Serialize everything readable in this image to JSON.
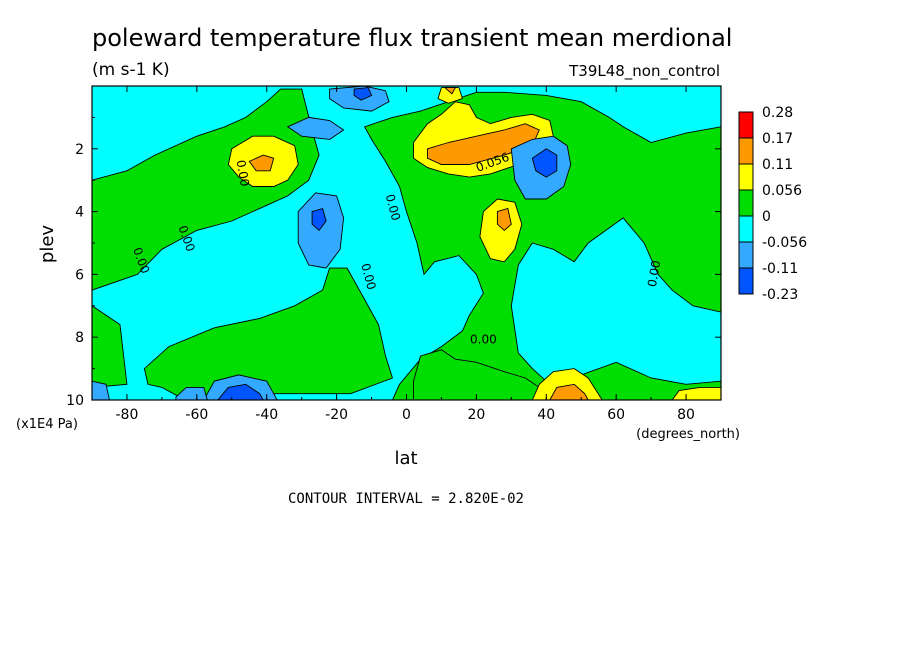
{
  "chart_data": {
    "type": "heatmap",
    "title": "poleward temperature flux transient mean merdional",
    "units": "(m s-1 K)",
    "dataset": "T39L48_non_control",
    "xlabel": "lat",
    "xunits": "(degrees_north)",
    "ylabel": "plev",
    "yunits": "(x1E4 Pa)",
    "xlim": [
      -90,
      90
    ],
    "ylim": [
      10,
      0
    ],
    "x_ticks": [
      "-80",
      "-60",
      "-40",
      "-20",
      "0",
      "20",
      "40",
      "60",
      "80"
    ],
    "y_ticks": [
      "2",
      "4",
      "6",
      "8",
      "10"
    ],
    "contour_interval_text": "CONTOUR INTERVAL = 2.820E-02",
    "contour_labels": [
      "0.00",
      "0.00",
      "0.00",
      "0.00",
      "0.00",
      "0.00",
      "0.056",
      "0.00"
    ],
    "legend": {
      "levels": [
        "0.28",
        "0.17",
        "0.11",
        "0.056",
        "0",
        "-0.056",
        "-0.11",
        "-0.23"
      ],
      "colors": [
        "#ff0000",
        "#ff9900",
        "#ffff00",
        "#00dd00",
        "#00ffff",
        "#33aaff",
        "#0055ff"
      ]
    },
    "fill_regions": [
      {
        "color": "#00ffff",
        "points": [
          [
            -90,
            0
          ],
          [
            90,
            0
          ],
          [
            90,
            10
          ],
          [
            -90,
            10
          ]
        ]
      },
      {
        "color": "#00dd00",
        "points": [
          [
            -90,
            3
          ],
          [
            -80,
            2.7
          ],
          [
            -72,
            2.2
          ],
          [
            -60,
            1.6
          ],
          [
            -52,
            1.3
          ],
          [
            -46,
            1.0
          ],
          [
            -40,
            0.5
          ],
          [
            -36,
            0.1
          ],
          [
            -30,
            0.1
          ],
          [
            -27,
            1.4
          ],
          [
            -25,
            2.2
          ],
          [
            -28,
            3.0
          ],
          [
            -34,
            3.5
          ],
          [
            -40,
            3.8
          ],
          [
            -50,
            4.3
          ],
          [
            -60,
            4.6
          ],
          [
            -70,
            5.2
          ],
          [
            -77,
            6.0
          ],
          [
            -90,
            6.5
          ]
        ]
      },
      {
        "color": "#00dd00",
        "points": [
          [
            -90,
            7.0
          ],
          [
            -82,
            7.6
          ],
          [
            -80,
            9.5
          ],
          [
            -90,
            9.6
          ]
        ]
      },
      {
        "color": "#00dd00",
        "points": [
          [
            -22,
            5.8
          ],
          [
            -17,
            5.8
          ],
          [
            -12,
            6.8
          ],
          [
            -8,
            7.6
          ],
          [
            -6,
            8.6
          ],
          [
            -4,
            9.3
          ],
          [
            -16,
            9.8
          ],
          [
            -40,
            9.8
          ],
          [
            -56,
            9.9
          ],
          [
            -65,
            9.9
          ],
          [
            -70,
            9.6
          ],
          [
            -74,
            9.5
          ],
          [
            -75,
            9.0
          ],
          [
            -68,
            8.3
          ],
          [
            -55,
            7.7
          ],
          [
            -42,
            7.4
          ],
          [
            -32,
            7.0
          ],
          [
            -24,
            6.5
          ]
        ]
      },
      {
        "color": "#00dd00",
        "points": [
          [
            -12,
            1.3
          ],
          [
            -4,
            1.0
          ],
          [
            4,
            0.8
          ],
          [
            12,
            0.5
          ],
          [
            20,
            0.2
          ],
          [
            28,
            0.2
          ],
          [
            40,
            0.3
          ],
          [
            50,
            0.5
          ],
          [
            58,
            1.0
          ],
          [
            62,
            1.3
          ],
          [
            70,
            1.8
          ],
          [
            80,
            1.5
          ],
          [
            90,
            1.3
          ],
          [
            90,
            7.2
          ],
          [
            82,
            7.0
          ],
          [
            76,
            6.5
          ],
          [
            72,
            6.0
          ],
          [
            68,
            5.0
          ],
          [
            62,
            4.2
          ],
          [
            52,
            5.0
          ],
          [
            48,
            5.6
          ],
          [
            42,
            5.2
          ],
          [
            36,
            5.0
          ],
          [
            32,
            5.7
          ],
          [
            30,
            7.0
          ],
          [
            32,
            8.5
          ],
          [
            36,
            9.0
          ],
          [
            40,
            9.4
          ],
          [
            50,
            9.2
          ],
          [
            60,
            8.8
          ],
          [
            70,
            9.3
          ],
          [
            80,
            9.5
          ],
          [
            90,
            9.4
          ],
          [
            90,
            10
          ],
          [
            -4,
            10
          ],
          [
            -2,
            9.5
          ],
          [
            4,
            8.7
          ],
          [
            10,
            8.3
          ],
          [
            16,
            7.8
          ],
          [
            18,
            7.3
          ],
          [
            22,
            6.6
          ],
          [
            20,
            6.0
          ],
          [
            15,
            5.4
          ],
          [
            8,
            5.6
          ],
          [
            5,
            6.0
          ],
          [
            3,
            5.0
          ],
          [
            0,
            4.0
          ],
          [
            -2,
            3.2
          ],
          [
            -6,
            2.4
          ],
          [
            -10,
            1.7
          ]
        ]
      },
      {
        "color": "#00dd00",
        "points": [
          [
            2,
            9.4
          ],
          [
            4,
            8.6
          ],
          [
            10,
            8.4
          ],
          [
            14,
            8.7
          ],
          [
            20,
            8.8
          ],
          [
            28,
            9.1
          ],
          [
            34,
            9.3
          ],
          [
            38,
            9.6
          ],
          [
            40,
            10
          ],
          [
            2,
            10
          ]
        ]
      },
      {
        "color": "#ffff00",
        "points": [
          [
            -50,
            2.0
          ],
          [
            -44,
            1.6
          ],
          [
            -38,
            1.6
          ],
          [
            -32,
            1.9
          ],
          [
            -31,
            2.5
          ],
          [
            -34,
            3.0
          ],
          [
            -38,
            3.2
          ],
          [
            -44,
            3.2
          ],
          [
            -48,
            2.9
          ],
          [
            -51,
            2.5
          ]
        ]
      },
      {
        "color": "#ff9900",
        "points": [
          [
            -45,
            2.4
          ],
          [
            -41,
            2.2
          ],
          [
            -38,
            2.3
          ],
          [
            -39,
            2.7
          ],
          [
            -43,
            2.7
          ]
        ]
      },
      {
        "color": "#ffff00",
        "points": [
          [
            2,
            1.8
          ],
          [
            6,
            1.2
          ],
          [
            10,
            0.9
          ],
          [
            14,
            0.5
          ],
          [
            18,
            0.6
          ],
          [
            20,
            1.0
          ],
          [
            24,
            1.2
          ],
          [
            30,
            1.0
          ],
          [
            36,
            0.9
          ],
          [
            41,
            1.1
          ],
          [
            42,
            1.6
          ],
          [
            38,
            2.1
          ],
          [
            32,
            2.5
          ],
          [
            24,
            2.8
          ],
          [
            18,
            2.9
          ],
          [
            12,
            2.8
          ],
          [
            6,
            2.6
          ],
          [
            2,
            2.3
          ]
        ]
      },
      {
        "color": "#ff9900",
        "points": [
          [
            6,
            2.0
          ],
          [
            12,
            1.8
          ],
          [
            20,
            1.6
          ],
          [
            28,
            1.4
          ],
          [
            34,
            1.2
          ],
          [
            38,
            1.4
          ],
          [
            36,
            1.9
          ],
          [
            28,
            2.2
          ],
          [
            18,
            2.5
          ],
          [
            10,
            2.5
          ],
          [
            6,
            2.3
          ]
        ]
      },
      {
        "color": "#ffff00",
        "points": [
          [
            10,
            0.05
          ],
          [
            15,
            0.05
          ],
          [
            16,
            0.4
          ],
          [
            12,
            0.55
          ],
          [
            9,
            0.4
          ]
        ]
      },
      {
        "color": "#ff9900",
        "points": [
          [
            11,
            0.05
          ],
          [
            14,
            0.05
          ],
          [
            13,
            0.25
          ]
        ]
      },
      {
        "color": "#ffff00",
        "points": [
          [
            22,
            4.0
          ],
          [
            26,
            3.6
          ],
          [
            31,
            3.7
          ],
          [
            33,
            4.4
          ],
          [
            31,
            5.2
          ],
          [
            28,
            5.6
          ],
          [
            24,
            5.5
          ],
          [
            21,
            4.8
          ]
        ]
      },
      {
        "color": "#ff9900",
        "points": [
          [
            26,
            4.0
          ],
          [
            29,
            3.9
          ],
          [
            30,
            4.4
          ],
          [
            28,
            4.6
          ],
          [
            26,
            4.4
          ]
        ]
      },
      {
        "color": "#ffff00",
        "points": [
          [
            36,
            10
          ],
          [
            38,
            9.5
          ],
          [
            42,
            9.1
          ],
          [
            48,
            9.0
          ],
          [
            52,
            9.3
          ],
          [
            56,
            10
          ]
        ]
      },
      {
        "color": "#ff9900",
        "points": [
          [
            41,
            10
          ],
          [
            43,
            9.6
          ],
          [
            48,
            9.5
          ],
          [
            51,
            9.8
          ],
          [
            52,
            10
          ]
        ]
      },
      {
        "color": "#ffff00",
        "points": [
          [
            76,
            10
          ],
          [
            78,
            9.7
          ],
          [
            84,
            9.6
          ],
          [
            90,
            9.6
          ],
          [
            90,
            10
          ]
        ]
      },
      {
        "color": "#33aaff",
        "points": [
          [
            -34,
            1.3
          ],
          [
            -28,
            1.0
          ],
          [
            -22,
            1.1
          ],
          [
            -18,
            1.4
          ],
          [
            -22,
            1.7
          ],
          [
            -30,
            1.6
          ]
        ]
      },
      {
        "color": "#33aaff",
        "points": [
          [
            -22,
            0.1
          ],
          [
            -12,
            0.0
          ],
          [
            -6,
            0.15
          ],
          [
            -5,
            0.5
          ],
          [
            -10,
            0.8
          ],
          [
            -18,
            0.7
          ],
          [
            -22,
            0.4
          ]
        ]
      },
      {
        "color": "#0055ff",
        "points": [
          [
            -15,
            0.1
          ],
          [
            -11,
            0.05
          ],
          [
            -10,
            0.3
          ],
          [
            -13,
            0.45
          ],
          [
            -15,
            0.3
          ]
        ]
      },
      {
        "color": "#33aaff",
        "points": [
          [
            -31,
            4.0
          ],
          [
            -26,
            3.4
          ],
          [
            -20,
            3.5
          ],
          [
            -18,
            4.2
          ],
          [
            -19,
            5.2
          ],
          [
            -23,
            5.8
          ],
          [
            -28,
            5.7
          ],
          [
            -31,
            5.0
          ]
        ]
      },
      {
        "color": "#0055ff",
        "points": [
          [
            -27,
            4.0
          ],
          [
            -24,
            3.9
          ],
          [
            -23,
            4.3
          ],
          [
            -25,
            4.6
          ],
          [
            -27,
            4.4
          ]
        ]
      },
      {
        "color": "#33aaff",
        "points": [
          [
            30,
            2.0
          ],
          [
            36,
            1.7
          ],
          [
            42,
            1.6
          ],
          [
            46,
            1.9
          ],
          [
            47,
            2.5
          ],
          [
            45,
            3.2
          ],
          [
            40,
            3.6
          ],
          [
            34,
            3.6
          ],
          [
            31,
            3.0
          ]
        ]
      },
      {
        "color": "#0055ff",
        "points": [
          [
            36,
            2.3
          ],
          [
            40,
            2.0
          ],
          [
            43,
            2.2
          ],
          [
            43,
            2.7
          ],
          [
            40,
            2.9
          ],
          [
            37,
            2.7
          ]
        ]
      },
      {
        "color": "#33aaff",
        "points": [
          [
            -58,
            10
          ],
          [
            -55,
            9.4
          ],
          [
            -48,
            9.2
          ],
          [
            -40,
            9.4
          ],
          [
            -37,
            10
          ]
        ]
      },
      {
        "color": "#0055ff",
        "points": [
          [
            -54,
            10
          ],
          [
            -51,
            9.6
          ],
          [
            -46,
            9.5
          ],
          [
            -42,
            9.8
          ],
          [
            -41,
            10
          ]
        ]
      },
      {
        "color": "#33aaff",
        "points": [
          [
            -90,
            9.4
          ],
          [
            -86,
            9.5
          ],
          [
            -85,
            10
          ],
          [
            -90,
            10
          ]
        ]
      },
      {
        "color": "#33aaff",
        "points": [
          [
            -66,
            9.9
          ],
          [
            -63,
            9.6
          ],
          [
            -58,
            9.6
          ],
          [
            -57,
            10
          ],
          [
            -66,
            10
          ]
        ]
      }
    ]
  }
}
